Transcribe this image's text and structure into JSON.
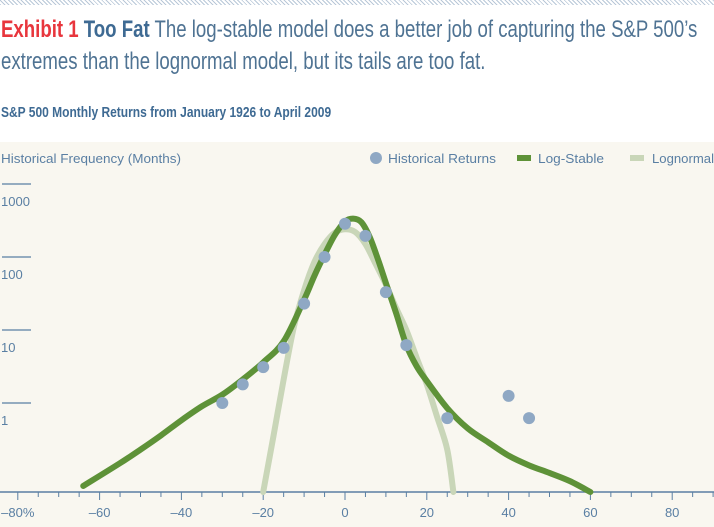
{
  "header": {
    "exhibit": "Exhibit 1",
    "title": "Too Fat",
    "caption": "The log-stable model does a better job of capturing the S&P 500’s extremes than the lognormal model, but its tails are too fat."
  },
  "chart_data": {
    "type": "line",
    "title": "S&P 500 Monthly Returns from January 1926 to April 2009",
    "ylabel": "Historical Frequency (Months)",
    "xlabel": "",
    "xlim": [
      -80,
      90
    ],
    "ylim_log": [
      0.06,
      2000
    ],
    "yscale": "log",
    "x_ticks": [
      -80,
      -60,
      -40,
      -20,
      0,
      20,
      40,
      60,
      80
    ],
    "x_tick_labels": [
      "–80%",
      "–60",
      "–40",
      "–20",
      "0",
      "20",
      "40",
      "60",
      "80"
    ],
    "y_ticks": [
      1,
      10,
      100,
      1000
    ],
    "y_tick_labels": [
      "1",
      "10",
      "100",
      "1000"
    ],
    "legend_position": "top-right",
    "legend": [
      "Historical Returns",
      "Log-Stable",
      "Lognormal"
    ],
    "colors": {
      "historical": "#8fa8c4",
      "log_stable": "#5e9238",
      "lognormal": "#c9d6b8",
      "axis": "#5a7fa3",
      "background": "#f9f7f0"
    },
    "series": [
      {
        "name": "Historical Returns",
        "kind": "scatter",
        "x": [
          -30,
          -25,
          -20,
          -15,
          -10,
          -5,
          0,
          5,
          10,
          15,
          25,
          40,
          45
        ],
        "y": [
          1.0,
          1.8,
          3.1,
          5.7,
          23,
          100,
          285,
          195,
          33,
          6.2,
          0.62,
          1.25,
          0.62
        ]
      },
      {
        "name": "Lognormal",
        "kind": "line",
        "x": [
          -20,
          -17.5,
          -15,
          -12.5,
          -10,
          -7.5,
          -5,
          -2.5,
          0,
          2.5,
          5,
          7.5,
          10,
          12.5,
          15,
          17.5,
          20,
          22.5,
          25,
          26.5
        ],
        "y": [
          0.06,
          0.35,
          2.1,
          11,
          35,
          85,
          150,
          215,
          240,
          220,
          150,
          80,
          42,
          20,
          10,
          4.2,
          1.8,
          0.65,
          0.23,
          0.06
        ]
      },
      {
        "name": "Log-Stable",
        "kind": "line",
        "x": [
          -64,
          -55,
          -50,
          -45,
          -40,
          -35,
          -30,
          -25,
          -20,
          -15,
          -10,
          -7.5,
          -5,
          -2.5,
          0,
          2,
          4,
          6,
          8,
          10,
          12.5,
          15,
          17.5,
          20,
          25,
          30,
          35,
          40,
          45,
          50,
          55,
          60
        ],
        "y": [
          0.073,
          0.15,
          0.23,
          0.36,
          0.58,
          0.9,
          1.3,
          2.1,
          3.6,
          7.0,
          26,
          55,
          108,
          200,
          305,
          335,
          300,
          190,
          95,
          44,
          17,
          6.2,
          3.2,
          2.0,
          0.85,
          0.45,
          0.29,
          0.19,
          0.14,
          0.11,
          0.085,
          0.06
        ]
      }
    ]
  }
}
